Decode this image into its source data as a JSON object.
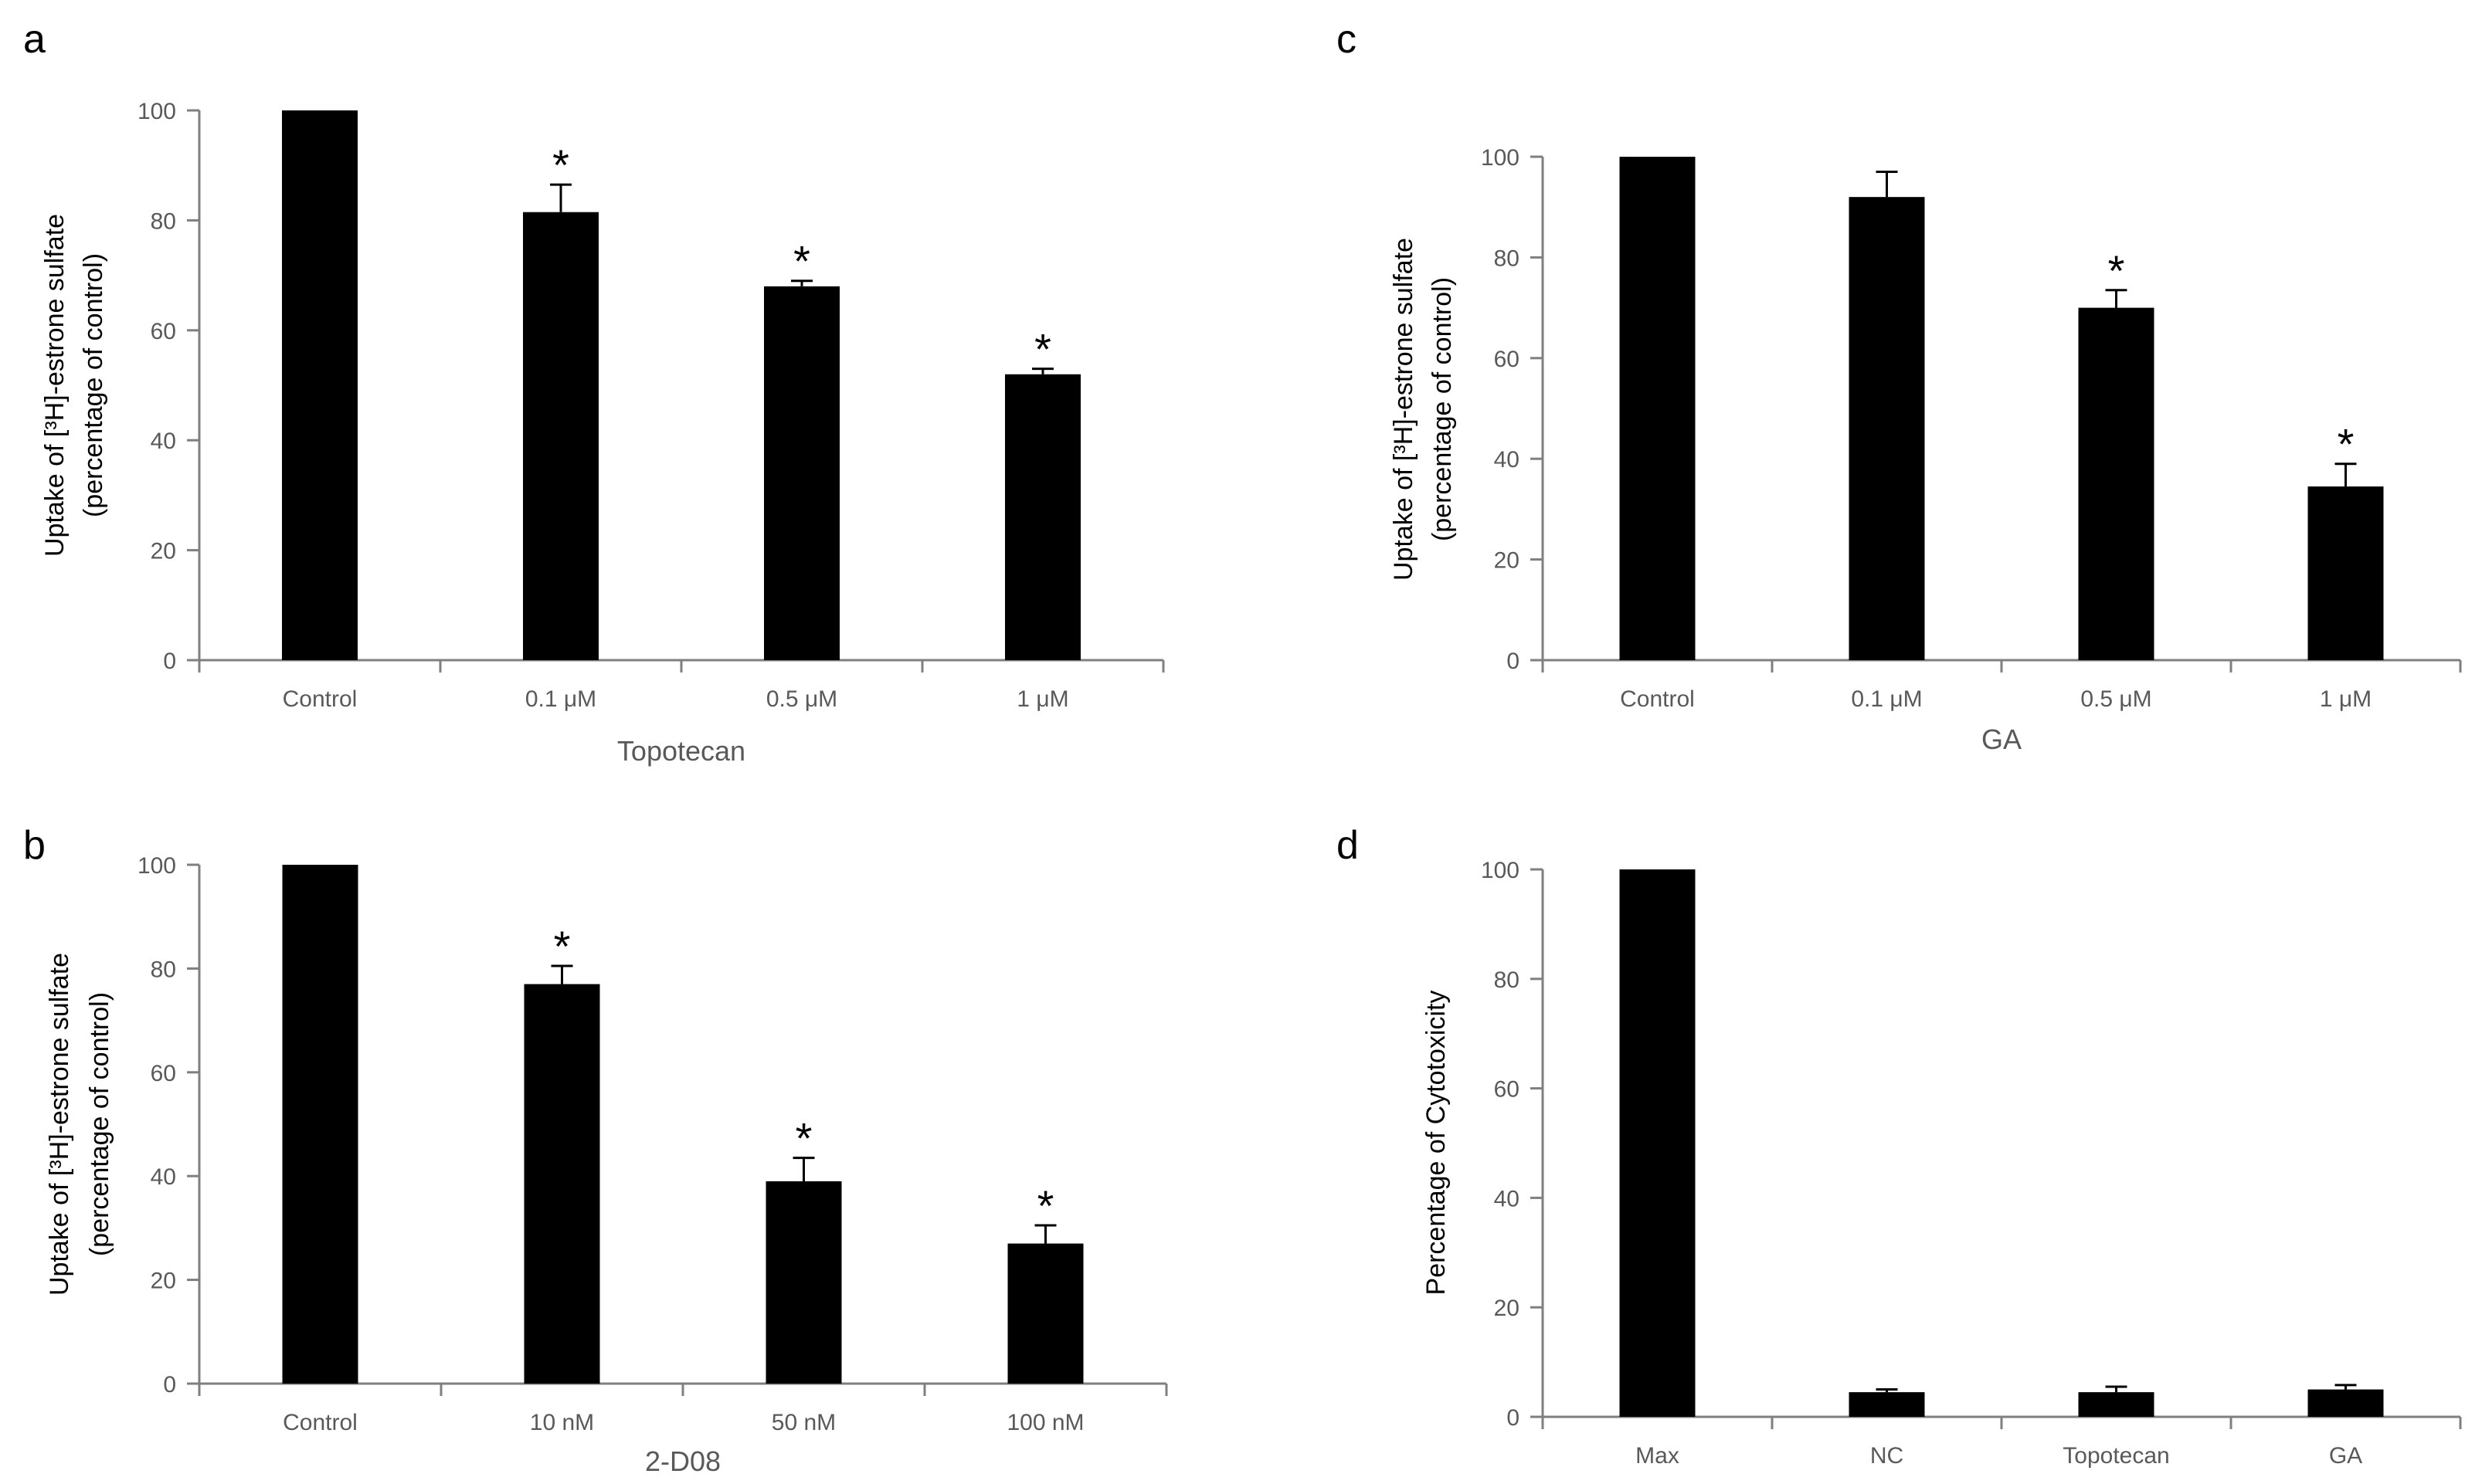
{
  "chart_data": [
    {
      "panel": "a",
      "type": "bar",
      "categories": [
        "Control",
        "0.1 μM",
        "0.5 μM",
        "1 μM"
      ],
      "values": [
        100,
        81.5,
        68,
        52
      ],
      "errors": [
        0,
        5,
        1,
        1
      ],
      "significant": [
        false,
        true,
        true,
        true
      ],
      "sig_marker": "*",
      "xlabel": "Topotecan",
      "ylabel": [
        "Uptake of [³H]-estrone sulfate",
        "(percentage of control)"
      ],
      "ylim": [
        0,
        100
      ],
      "yticks": [
        0,
        20,
        40,
        60,
        80,
        100
      ]
    },
    {
      "panel": "b",
      "type": "bar",
      "categories": [
        "Control",
        "10 nM",
        "50 nM",
        "100 nM"
      ],
      "values": [
        100,
        77,
        39,
        27
      ],
      "errors": [
        0,
        3.5,
        4.5,
        3.5
      ],
      "significant": [
        false,
        true,
        true,
        true
      ],
      "sig_marker": "*",
      "xlabel": "2-D08",
      "ylabel": [
        "Uptake of [³H]-estrone sulfate",
        "(percentage of control)"
      ],
      "ylim": [
        0,
        100
      ],
      "yticks": [
        0,
        20,
        40,
        60,
        80,
        100
      ]
    },
    {
      "panel": "c",
      "type": "bar",
      "categories": [
        "Control",
        "0.1 μM",
        "0.5 μM",
        "1 μM"
      ],
      "values": [
        100,
        92,
        70,
        34.5
      ],
      "errors": [
        0,
        5,
        3.5,
        4.5
      ],
      "significant": [
        false,
        false,
        true,
        true
      ],
      "sig_marker": "*",
      "xlabel": "GA",
      "ylabel": [
        "Uptake of [³H]-estrone sulfate",
        "(percentage of control)"
      ],
      "ylim": [
        0,
        100
      ],
      "yticks": [
        0,
        20,
        40,
        60,
        80,
        100
      ]
    },
    {
      "panel": "d",
      "type": "bar",
      "categories": [
        "Max",
        "NC",
        "Topotecan",
        "GA"
      ],
      "values": [
        100,
        4.5,
        4.5,
        5
      ],
      "errors": [
        0,
        0.5,
        1,
        0.8
      ],
      "significant": [
        false,
        false,
        false,
        false
      ],
      "sig_marker": "*",
      "xlabel": "",
      "ylabel": [
        "Percentage of Cytotoxicity"
      ],
      "ylim": [
        0,
        100
      ],
      "yticks": [
        0,
        20,
        40,
        60,
        80,
        100
      ]
    }
  ]
}
